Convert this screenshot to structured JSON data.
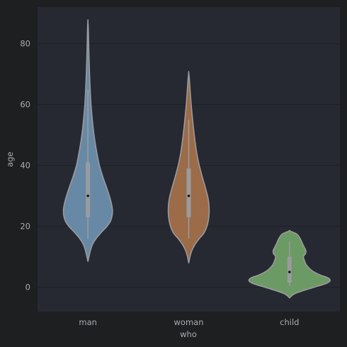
{
  "chart_data": {
    "type": "violin",
    "xlabel": "who",
    "ylabel": "age",
    "categories": [
      "man",
      "woman",
      "child"
    ],
    "ylim": [
      -8,
      92
    ],
    "yticks": [
      0,
      20,
      40,
      60,
      80
    ],
    "grid": "horizontal",
    "colors": {
      "figure_bg": "#1e1f21",
      "plot_bg": "#272932",
      "grid": "#1f2026",
      "outline": "#9a9b9f",
      "man": "#6789a6",
      "woman": "#9c6b47",
      "child": "#6c9a64"
    },
    "series": [
      {
        "category": "man",
        "min": 8.5,
        "max": 87.5,
        "q1": 23,
        "median": 30,
        "q3": 41,
        "whisker_low": 16,
        "whisker_high": 65,
        "density": [
          [
            8.5,
            0.0
          ],
          [
            10,
            0.5
          ],
          [
            12,
            1.2
          ],
          [
            14,
            2.2
          ],
          [
            16,
            4.0
          ],
          [
            18,
            6.5
          ],
          [
            20,
            9.3
          ],
          [
            22,
            11.2
          ],
          [
            25,
            12.0
          ],
          [
            28,
            11.3
          ],
          [
            32,
            9.5
          ],
          [
            36,
            7.4
          ],
          [
            40,
            5.6
          ],
          [
            44,
            4.4
          ],
          [
            48,
            3.4
          ],
          [
            52,
            2.6
          ],
          [
            56,
            2.0
          ],
          [
            60,
            1.5
          ],
          [
            65,
            1.1
          ],
          [
            70,
            0.8
          ],
          [
            75,
            0.55
          ],
          [
            80,
            0.35
          ],
          [
            85,
            0.18
          ],
          [
            87.5,
            0.0
          ]
        ]
      },
      {
        "category": "woman",
        "min": 8,
        "max": 70.5,
        "q1": 23,
        "median": 30,
        "q3": 39,
        "whisker_low": 16,
        "whisker_high": 55,
        "density": [
          [
            8,
            0.0
          ],
          [
            10,
            0.6
          ],
          [
            12,
            1.5
          ],
          [
            14,
            3.0
          ],
          [
            16,
            5.2
          ],
          [
            18,
            7.6
          ],
          [
            21,
            9.3
          ],
          [
            25,
            10.0
          ],
          [
            29,
            9.5
          ],
          [
            33,
            8.0
          ],
          [
            37,
            6.3
          ],
          [
            41,
            4.8
          ],
          [
            45,
            3.7
          ],
          [
            50,
            2.7
          ],
          [
            55,
            1.9
          ],
          [
            60,
            1.2
          ],
          [
            65,
            0.65
          ],
          [
            68,
            0.35
          ],
          [
            70.5,
            0.0
          ]
        ]
      },
      {
        "category": "child",
        "min": -3.5,
        "max": 18.5,
        "q1": 1.5,
        "median": 5,
        "q3": 10,
        "whisker_low": 0.5,
        "whisker_high": 15,
        "density": [
          [
            -3.5,
            0.0
          ],
          [
            -2,
            3.0
          ],
          [
            0,
            12.0
          ],
          [
            1,
            17.0
          ],
          [
            2,
            19.7
          ],
          [
            3,
            19.0
          ],
          [
            4,
            15.0
          ],
          [
            5,
            12.0
          ],
          [
            6,
            10.0
          ],
          [
            7,
            8.6
          ],
          [
            8,
            7.7
          ],
          [
            10,
            6.8
          ],
          [
            11,
            7.8
          ],
          [
            12,
            8.0
          ],
          [
            13,
            7.3
          ],
          [
            14.5,
            6.2
          ],
          [
            16,
            5.2
          ],
          [
            17.5,
            3.5
          ],
          [
            18.5,
            0.0
          ]
        ]
      }
    ]
  }
}
